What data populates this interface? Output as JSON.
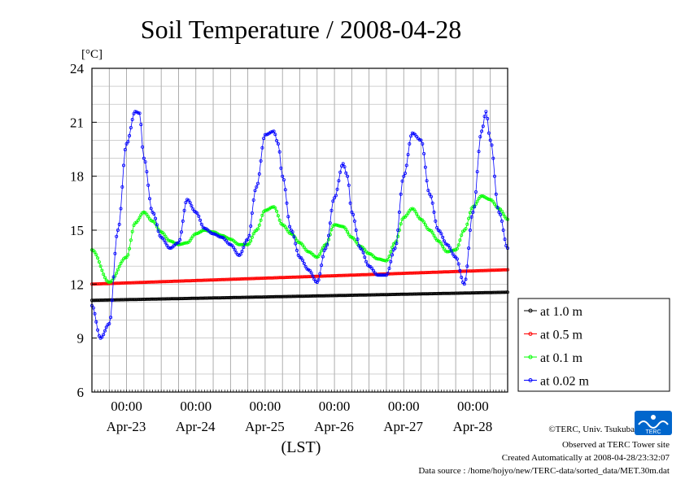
{
  "chart_data": {
    "type": "line",
    "title": "Soil Temperature / 2008-04-28",
    "ylabel": "[°C]",
    "xlabel": "(LST)",
    "ylim": [
      6,
      24
    ],
    "xlim": [
      "2008-04-22T12:00",
      "2008-04-28T12:00"
    ],
    "yticks": [
      "6",
      "9",
      "12",
      "15",
      "18",
      "21",
      "24"
    ],
    "midnight_tick_label": "00:00",
    "date_labels": [
      "Apr-23",
      "Apr-24",
      "Apr-25",
      "Apr-26",
      "Apr-27",
      "Apr-28"
    ],
    "grid": true,
    "legend_position": "right",
    "series": [
      {
        "name": "at 1.0 m",
        "color": "#000000",
        "x": [
          "2008-04-22T12:00",
          "2008-04-28T12:00"
        ],
        "y": [
          11.1,
          11.55
        ]
      },
      {
        "name": "at 0.5 m",
        "color": "#ff0000",
        "x": [
          "2008-04-22T12:00",
          "2008-04-28T12:00"
        ],
        "y": [
          12.0,
          12.8
        ]
      },
      {
        "name": "at 0.1 m",
        "color": "#00ff00",
        "x": [
          "2008-04-22T12:00",
          "2008-04-22T18:00",
          "2008-04-23T00:00",
          "2008-04-23T03:00",
          "2008-04-23T06:00",
          "2008-04-23T09:00",
          "2008-04-23T12:00",
          "2008-04-23T15:00",
          "2008-04-23T18:00",
          "2008-04-23T21:00",
          "2008-04-24T00:00",
          "2008-04-24T03:00",
          "2008-04-24T06:00",
          "2008-04-24T09:00",
          "2008-04-24T12:00",
          "2008-04-24T15:00",
          "2008-04-24T18:00",
          "2008-04-24T21:00",
          "2008-04-25T00:00",
          "2008-04-25T03:00",
          "2008-04-25T06:00",
          "2008-04-25T09:00",
          "2008-04-25T12:00",
          "2008-04-25T15:00",
          "2008-04-25T18:00",
          "2008-04-25T21:00",
          "2008-04-26T00:00",
          "2008-04-26T03:00",
          "2008-04-26T06:00",
          "2008-04-26T09:00",
          "2008-04-26T12:00",
          "2008-04-26T15:00",
          "2008-04-26T18:00",
          "2008-04-26T21:00",
          "2008-04-27T00:00",
          "2008-04-27T03:00",
          "2008-04-27T06:00",
          "2008-04-27T09:00",
          "2008-04-27T12:00",
          "2008-04-27T15:00",
          "2008-04-27T18:00",
          "2008-04-27T21:00",
          "2008-04-28T00:00",
          "2008-04-28T03:00",
          "2008-04-28T06:00",
          "2008-04-28T09:00",
          "2008-04-28T12:00"
        ],
        "y": [
          13.9,
          12.1,
          13.5,
          15.4,
          16.0,
          15.5,
          14.9,
          14.4,
          14.2,
          14.3,
          14.8,
          15.0,
          14.9,
          14.7,
          14.5,
          14.2,
          14.2,
          15.0,
          16.1,
          16.3,
          15.3,
          14.8,
          14.3,
          13.8,
          13.5,
          14.2,
          15.3,
          15.2,
          14.6,
          14.1,
          13.7,
          13.4,
          13.3,
          14.3,
          15.7,
          16.2,
          15.6,
          15.0,
          14.4,
          13.8,
          13.9,
          15.0,
          16.3,
          16.9,
          16.7,
          16.2,
          15.6
        ]
      },
      {
        "name": "at 0.02 m",
        "color": "#0000ff",
        "x": [
          "2008-04-22T12:00",
          "2008-04-22T15:00",
          "2008-04-22T18:00",
          "2008-04-22T21:00",
          "2008-04-23T00:00",
          "2008-04-23T03:00",
          "2008-04-23T04:30",
          "2008-04-23T06:00",
          "2008-04-23T09:00",
          "2008-04-23T12:00",
          "2008-04-23T15:00",
          "2008-04-23T18:00",
          "2008-04-23T21:00",
          "2008-04-24T00:00",
          "2008-04-24T03:00",
          "2008-04-24T06:00",
          "2008-04-24T09:00",
          "2008-04-24T12:00",
          "2008-04-24T15:00",
          "2008-04-24T18:00",
          "2008-04-24T21:00",
          "2008-04-25T00:00",
          "2008-04-25T03:00",
          "2008-04-25T04:30",
          "2008-04-25T06:00",
          "2008-04-25T09:00",
          "2008-04-25T12:00",
          "2008-04-25T15:00",
          "2008-04-25T18:00",
          "2008-04-25T21:00",
          "2008-04-26T00:00",
          "2008-04-26T03:00",
          "2008-04-26T04:30",
          "2008-04-26T06:00",
          "2008-04-26T09:00",
          "2008-04-26T12:00",
          "2008-04-26T15:00",
          "2008-04-26T18:00",
          "2008-04-26T21:00",
          "2008-04-27T00:00",
          "2008-04-27T03:00",
          "2008-04-27T06:00",
          "2008-04-27T09:00",
          "2008-04-27T12:00",
          "2008-04-27T15:00",
          "2008-04-27T18:00",
          "2008-04-27T21:00",
          "2008-04-28T00:00",
          "2008-04-28T03:00",
          "2008-04-28T04:30",
          "2008-04-28T06:00",
          "2008-04-28T09:00",
          "2008-04-28T12:00"
        ],
        "y": [
          10.8,
          9.0,
          9.8,
          15.0,
          19.8,
          21.6,
          21.5,
          19.0,
          16.0,
          14.6,
          14.0,
          14.3,
          16.7,
          16.0,
          15.1,
          14.8,
          14.6,
          14.2,
          13.6,
          14.5,
          17.4,
          20.3,
          20.5,
          19.8,
          18.0,
          15.0,
          13.5,
          12.8,
          12.1,
          14.0,
          16.8,
          18.7,
          18.0,
          16.0,
          14.0,
          13.0,
          12.5,
          12.5,
          14.0,
          18.0,
          20.4,
          20.0,
          17.0,
          15.0,
          14.2,
          13.5,
          12.0,
          16.0,
          20.5,
          21.6,
          20.0,
          16.0,
          14.0
        ]
      }
    ]
  },
  "credits": {
    "copyright": "©TERC, Univ. Tsukuba",
    "site": "Observed at TERC Tower site",
    "created": "Created Automatically at 2008-04-28/23:32:07",
    "source": "Data source : /home/hojyo/new/TERC-data/sorted_data/MET.30m.dat"
  },
  "logo": {
    "text": "TERC",
    "color": "#0066cc",
    "icon": "terc-wave-logo-icon"
  }
}
